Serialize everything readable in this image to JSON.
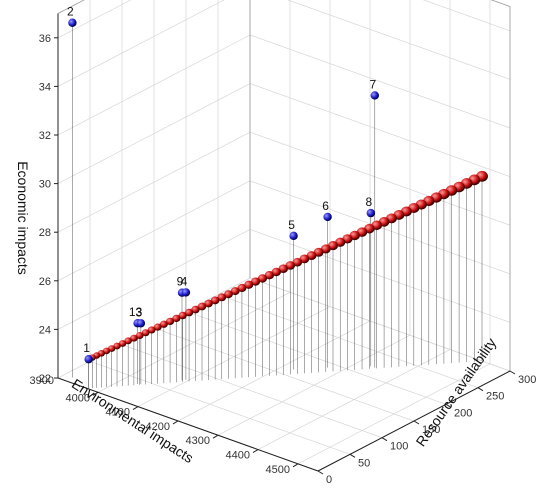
{
  "chart_data": {
    "type": "scatter",
    "axes": {
      "x": {
        "label": "Environmental impacts",
        "ticks": [
          "4000",
          "4100",
          "4200",
          "4300",
          "4400",
          "4500"
        ],
        "extra_tick": "3900",
        "range": [
          3900,
          4550
        ]
      },
      "y": {
        "label": "Resource availability",
        "ticks": [
          "0",
          "50",
          "100",
          "150",
          "200",
          "250",
          "300"
        ],
        "range": [
          0,
          300
        ]
      },
      "z": {
        "label": "Economic impacts",
        "ticks": [
          "22",
          "24",
          "26",
          "28",
          "30",
          "32",
          "34",
          "36"
        ],
        "range": [
          22,
          37
        ]
      }
    },
    "grid": true,
    "view": "3d",
    "series": [
      {
        "color": "#cc1111",
        "role": "front"
      },
      {
        "color": "#2020cc",
        "role": "labeled"
      }
    ],
    "labeled_points": [
      {
        "label": "1",
        "x": 3975,
        "y": 1,
        "z": 23.2
      },
      {
        "label": "2",
        "x": 3920,
        "y": 10,
        "z": 36.6
      },
      {
        "label": "13",
        "x": 4035,
        "y": 40,
        "z": 24.5
      },
      {
        "label": "3",
        "x": 4040,
        "y": 42,
        "z": 24.5
      },
      {
        "label": "9",
        "x": 4090,
        "y": 75,
        "z": 25.6
      },
      {
        "label": "4",
        "x": 4095,
        "y": 78,
        "z": 25.6
      },
      {
        "label": "5",
        "x": 4225,
        "y": 165,
        "z": 27.5
      },
      {
        "label": "6",
        "x": 4270,
        "y": 190,
        "z": 28.2
      },
      {
        "label": "7",
        "x": 4340,
        "y": 220,
        "z": 33.2
      },
      {
        "label": "8",
        "x": 4330,
        "y": 220,
        "z": 28.3
      }
    ],
    "front_points": {
      "x_start": 3975,
      "x_end": 4480,
      "y_start": 1,
      "y_end": 300,
      "z_start": 23.2,
      "z_end": 29.6,
      "count": 60
    }
  }
}
